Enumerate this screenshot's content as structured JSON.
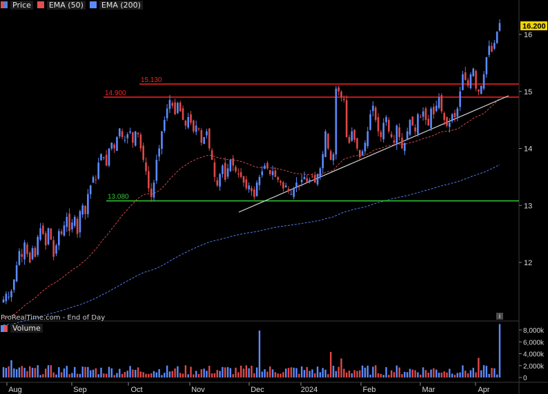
{
  "legend": [
    {
      "label": "Price",
      "swatch": "#e05050",
      "swatch2": "#5080e0",
      "icon": "candlestick-icon"
    },
    {
      "label": "EMA (50)",
      "swatch": "#e05050",
      "icon": "line-swatch-icon"
    },
    {
      "label": "EMA (200)",
      "swatch": "#5b8cff",
      "icon": "line-swatch-icon"
    }
  ],
  "volume_legend": {
    "label": "Volume",
    "swatch": "#5b8cff",
    "swatch2": "#e05050"
  },
  "source_text": "ProRealTime.com - End of Day",
  "last_price_tag": "16.200",
  "levels": [
    {
      "label": "15.130",
      "value": 15.13,
      "color": "#ff2020"
    },
    {
      "label": "14.900",
      "value": 14.9,
      "color": "#ff2020"
    },
    {
      "label": "13.080",
      "value": 13.08,
      "color": "#33cc33"
    }
  ],
  "colors": {
    "up": "#5b8cff",
    "down": "#e04848",
    "ema50": "#d24a4a",
    "ema200": "#4f7cf0",
    "trend": "#d8d8d8",
    "grid": "#2a2a2a"
  },
  "chart_data": {
    "type": "candlestick",
    "title": "",
    "price_axis": {
      "ticks": [
        "12",
        "13",
        "14",
        "15",
        "16"
      ],
      "range": [
        11.3,
        16.35
      ]
    },
    "volume_axis": {
      "ticks": [
        "8,000k",
        "6,000k",
        "4,000k",
        "2,000k",
        "0"
      ],
      "range": [
        0,
        8600
      ]
    },
    "months": [
      "Aug",
      "Sep",
      "Oct",
      "Nov",
      "Dec",
      "2024",
      "Feb",
      "Mar",
      "Apr"
    ],
    "close": [
      11.35,
      11.45,
      11.4,
      11.5,
      11.7,
      11.95,
      12.2,
      12.1,
      12.35,
      12.15,
      12.0,
      12.25,
      12.1,
      12.45,
      12.6,
      12.5,
      12.3,
      12.6,
      12.4,
      12.1,
      12.3,
      12.55,
      12.5,
      12.65,
      12.8,
      12.55,
      12.7,
      12.8,
      12.5,
      12.9,
      13.0,
      12.85,
      13.2,
      13.35,
      13.5,
      13.45,
      13.75,
      13.9,
      13.85,
      13.7,
      14.0,
      14.1,
      14.0,
      14.2,
      14.35,
      14.2,
      14.15,
      14.25,
      14.3,
      14.1,
      14.3,
      14.25,
      14.0,
      13.8,
      13.6,
      13.3,
      13.15,
      13.4,
      13.8,
      14.0,
      14.3,
      14.5,
      14.7,
      14.85,
      14.75,
      14.6,
      14.8,
      14.65,
      14.5,
      14.4,
      14.55,
      14.45,
      14.3,
      14.4,
      14.35,
      14.1,
      14.2,
      14.3,
      14.0,
      13.8,
      13.5,
      13.35,
      13.55,
      13.7,
      13.45,
      13.65,
      13.8,
      13.7,
      13.6,
      13.55,
      13.5,
      13.4,
      13.3,
      13.35,
      13.25,
      13.15,
      13.4,
      13.5,
      13.6,
      13.7,
      13.65,
      13.55,
      13.6,
      13.5,
      13.45,
      13.4,
      13.3,
      13.35,
      13.25,
      13.2,
      13.3,
      13.4,
      13.35,
      13.45,
      13.5,
      13.4,
      13.45,
      13.5,
      13.4,
      13.55,
      13.65,
      13.9,
      14.3,
      14.0,
      13.8,
      13.9,
      15.05,
      15.0,
      14.9,
      14.85,
      14.2,
      14.1,
      14.3,
      14.15,
      14.0,
      13.85,
      13.95,
      14.1,
      14.3,
      14.6,
      14.75,
      14.5,
      14.3,
      14.2,
      14.45,
      14.55,
      14.3,
      14.2,
      14.1,
      14.4,
      14.2,
      14.0,
      14.1,
      14.3,
      14.5,
      14.4,
      14.3,
      14.6,
      14.55,
      14.65,
      14.5,
      14.4,
      14.7,
      14.6,
      14.75,
      14.9,
      14.65,
      14.5,
      14.4,
      14.45,
      14.6,
      14.55,
      14.7,
      15.0,
      15.3,
      15.2,
      15.1,
      15.3,
      15.4,
      15.05,
      15.0,
      15.1,
      15.3,
      15.6,
      15.8,
      15.7,
      15.85,
      16.05,
      16.2
    ]
  }
}
